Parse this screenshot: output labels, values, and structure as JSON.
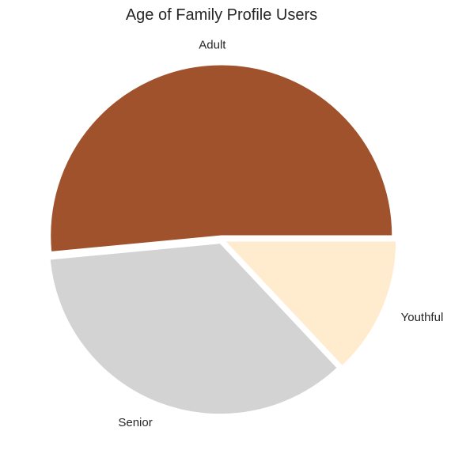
{
  "chart_data": {
    "type": "pie",
    "title": "Age of Family Profile Users",
    "slices": [
      {
        "label": "Adult",
        "value": 51.5,
        "color": "#A0522D"
      },
      {
        "label": "Senior",
        "value": 35.5,
        "color": "#D3D3D3"
      },
      {
        "label": "Youthful",
        "value": 13.0,
        "color": "#FFEBCD"
      }
    ],
    "start_angle_deg": 0,
    "direction": "counterclockwise",
    "exploded": true,
    "legend": "none"
  }
}
